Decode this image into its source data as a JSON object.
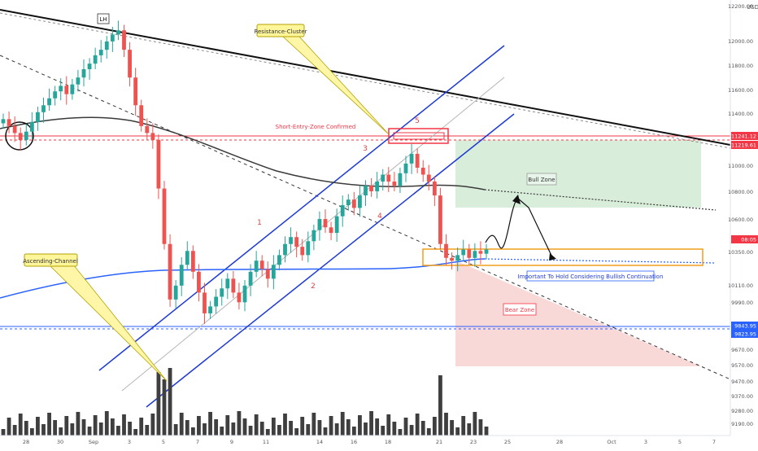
{
  "chart_data": {
    "type": "candlestick",
    "currency_label": "USD",
    "price_axis": {
      "ticks": [
        "12200.00",
        "12000.00",
        "11800.00",
        "11600.00",
        "11400.00",
        "11000.00",
        "10800.00",
        "10600.00",
        "10350.00",
        "10110.00",
        "9990.00",
        "9770.00",
        "9670.00",
        "9570.00",
        "9470.00",
        "9370.00",
        "9280.00",
        "9190.00"
      ]
    },
    "price_tags": [
      {
        "label": "11241.12",
        "color": "#f23645"
      },
      {
        "label": "11219.61",
        "color": "#f23645"
      },
      {
        "label": "08:05",
        "color": "#f23645"
      },
      {
        "label": "9843.95",
        "color": "#2962ff"
      },
      {
        "label": "9823.95",
        "color": "#2962ff"
      }
    ],
    "time_axis": {
      "ticks": [
        "28",
        "30",
        "Sep",
        "3",
        "5",
        "7",
        "9",
        "11",
        "14",
        "16",
        "18",
        "21",
        "23",
        "25",
        "28",
        "Oct",
        "3",
        "5",
        "7"
      ]
    },
    "annotations": {
      "lh_label": "LH",
      "resistance_cluster": "Resistance-Cluster",
      "short_entry": "Short-Entry-Zone Confirmed",
      "ascending_channel": "Ascending-Channel",
      "bull_zone": "Bull Zone",
      "bear_zone": "Bear Zone",
      "bullish_continuation": "Important To Hold Considering Bullish Continuation",
      "wave_labels": [
        "1",
        "2",
        "3",
        "4",
        "5"
      ]
    },
    "candles_close": [
      11400,
      11350,
      11300,
      11250,
      11310,
      11380,
      11450,
      11500,
      11550,
      11600,
      11640,
      11580,
      11650,
      11700,
      11760,
      11800,
      11860,
      11900,
      11960,
      12010,
      12040,
      11900,
      11700,
      11500,
      11350,
      11300,
      11250,
      10900,
      10500,
      10100,
      10200,
      10350,
      10450,
      10300,
      10150,
      10000,
      10050,
      10120,
      10180,
      10250,
      10150,
      10080,
      10200,
      10300,
      10380,
      10320,
      10250,
      10350,
      10420,
      10500,
      10550,
      10480,
      10420,
      10520,
      10600,
      10680,
      10620,
      10580,
      10700,
      10780,
      10820,
      10760,
      10850,
      10920,
      10880,
      10950,
      11000,
      10950,
      10920,
      11010,
      11080,
      11150,
      11050,
      11000,
      10950,
      10850,
      10500,
      10400,
      10380,
      10420,
      10460,
      10400,
      10450,
      10430,
      10460
    ],
    "colors": {
      "up": "#26a69a",
      "down": "#ef5350",
      "channel": "#1f3bd6",
      "resistance": "#f23645",
      "support": "#2962ff",
      "ma200": "#3a3a3a",
      "ma_blue": "#2962ff",
      "bull_zone": "#d8eedb",
      "bear_zone": "#f9d8d8",
      "key_box": "#f29d1c"
    }
  }
}
